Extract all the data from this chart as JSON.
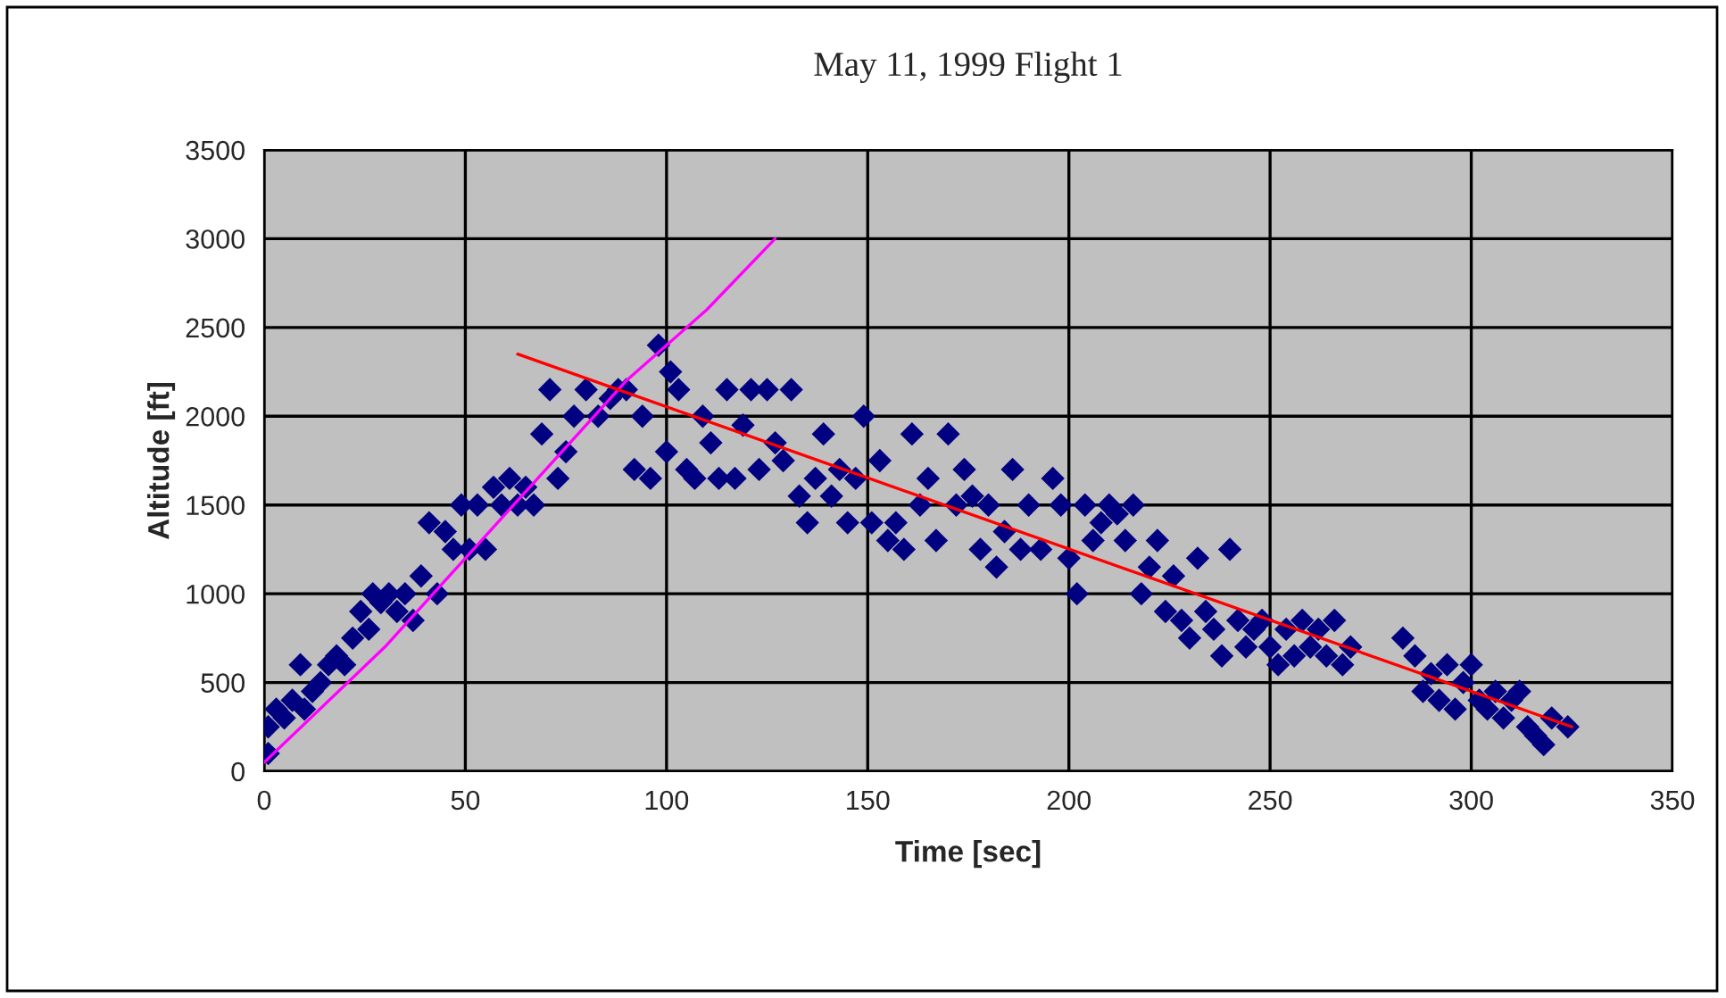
{
  "chart_data": {
    "type": "scatter",
    "title": "May 11, 1999 Flight 1",
    "xlabel": "Time [sec]",
    "ylabel": "Altitude [ft]",
    "xlim": [
      0,
      350
    ],
    "xticks": [
      0,
      50,
      100,
      150,
      200,
      250,
      300,
      350
    ],
    "ylim": [
      0,
      3500
    ],
    "yticks": [
      0,
      500,
      1000,
      1500,
      2000,
      2500,
      3000,
      3500
    ],
    "grid": true,
    "series": [
      {
        "marker": "diamond",
        "color": "#000080",
        "x": [
          1,
          1,
          3,
          5,
          7,
          9,
          10,
          12,
          14,
          16,
          18,
          20,
          22,
          24,
          26,
          27,
          29,
          31,
          33,
          35,
          37,
          39,
          41,
          43,
          45,
          47,
          49,
          51,
          53,
          55,
          57,
          59,
          61,
          63,
          65,
          67,
          69,
          71,
          73,
          75,
          77,
          80,
          83,
          86,
          88,
          90,
          92,
          94,
          96,
          98,
          100,
          101,
          103,
          105,
          107,
          109,
          111,
          113,
          115,
          117,
          119,
          121,
          123,
          125,
          127,
          129,
          131,
          133,
          135,
          137,
          139,
          141,
          143,
          145,
          147,
          149,
          151,
          153,
          155,
          157,
          159,
          161,
          163,
          165,
          167,
          170,
          172,
          174,
          176,
          178,
          180,
          182,
          184,
          186,
          188,
          190,
          193,
          196,
          198,
          200,
          202,
          204,
          206,
          208,
          210,
          212,
          214,
          216,
          218,
          220,
          222,
          224,
          226,
          228,
          230,
          232,
          234,
          236,
          238,
          240,
          242,
          244,
          246,
          248,
          250,
          252,
          254,
          256,
          258,
          260,
          262,
          264,
          266,
          268,
          270,
          283,
          286,
          288,
          290,
          292,
          294,
          296,
          298,
          300,
          302,
          304,
          306,
          308,
          310,
          312,
          314,
          316,
          318,
          320,
          324
        ],
        "values": [
          100,
          250,
          350,
          300,
          400,
          600,
          350,
          450,
          500,
          600,
          650,
          600,
          750,
          900,
          800,
          1000,
          950,
          1000,
          900,
          1000,
          850,
          1100,
          1400,
          1000,
          1350,
          1250,
          1500,
          1250,
          1500,
          1250,
          1600,
          1500,
          1650,
          1500,
          1600,
          1500,
          1900,
          2150,
          1650,
          1800,
          2000,
          2150,
          2000,
          2100,
          2150,
          2150,
          1700,
          2000,
          1650,
          2400,
          1800,
          2250,
          2150,
          1700,
          1650,
          2000,
          1850,
          1650,
          2150,
          1650,
          1950,
          2150,
          1700,
          2150,
          1850,
          1750,
          2150,
          1550,
          1400,
          1650,
          1900,
          1550,
          1700,
          1400,
          1650,
          2000,
          1400,
          1750,
          1300,
          1400,
          1250,
          1900,
          1500,
          1650,
          1300,
          1900,
          1500,
          1700,
          1550,
          1250,
          1500,
          1150,
          1350,
          1700,
          1250,
          1500,
          1250,
          1650,
          1500,
          1200,
          1000,
          1500,
          1300,
          1400,
          1500,
          1450,
          1300,
          1500,
          1000,
          1150,
          1300,
          900,
          1100,
          850,
          750,
          1200,
          900,
          800,
          650,
          1250,
          850,
          700,
          800,
          850,
          700,
          600,
          800,
          650,
          850,
          700,
          800,
          650,
          850,
          600,
          700,
          750,
          650,
          450,
          550,
          400,
          600,
          350,
          500,
          600,
          400,
          350,
          450,
          300,
          400,
          450,
          250,
          200,
          150,
          300,
          250
        ]
      },
      {
        "type": "line",
        "color": "#ff00ff",
        "x": [
          0,
          30,
          60,
          90,
          110,
          127
        ],
        "values": [
          50,
          700,
          1450,
          2200,
          2600,
          3000
        ]
      },
      {
        "type": "line",
        "color": "#ff0000",
        "x": [
          63,
          325
        ],
        "values": [
          2350,
          250
        ]
      }
    ]
  }
}
